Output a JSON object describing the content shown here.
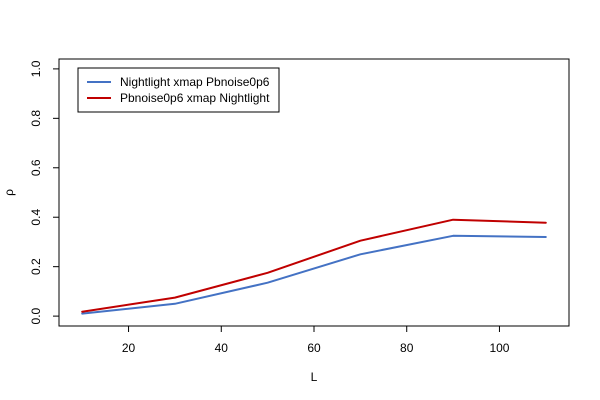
{
  "chart_data": {
    "type": "line",
    "title": "",
    "xlabel": "L",
    "ylabel": "ρ",
    "xlim": [
      5,
      115
    ],
    "ylim": [
      -0.04,
      1.04
    ],
    "x_ticks": [
      20,
      40,
      60,
      80,
      100
    ],
    "x_tick_labels": [
      "20",
      "40",
      "60",
      "80",
      "100"
    ],
    "y_ticks": [
      0.0,
      0.2,
      0.4,
      0.6,
      0.8,
      1.0
    ],
    "y_tick_labels": [
      "0.0",
      "0.2",
      "0.4",
      "0.6",
      "0.8",
      "1.0"
    ],
    "grid": false,
    "legend_position": "top-left",
    "x": [
      10,
      30,
      50,
      70,
      90,
      110
    ],
    "series": [
      {
        "name": "Nightlight xmap Pbnoise0p6",
        "color": "#4472C4",
        "values": [
          0.01,
          0.05,
          0.135,
          0.25,
          0.325,
          0.32
        ]
      },
      {
        "name": "Pbnoise0p6 xmap Nightlight",
        "color": "#C00000",
        "values": [
          0.018,
          0.075,
          0.175,
          0.305,
          0.39,
          0.378
        ]
      }
    ]
  }
}
